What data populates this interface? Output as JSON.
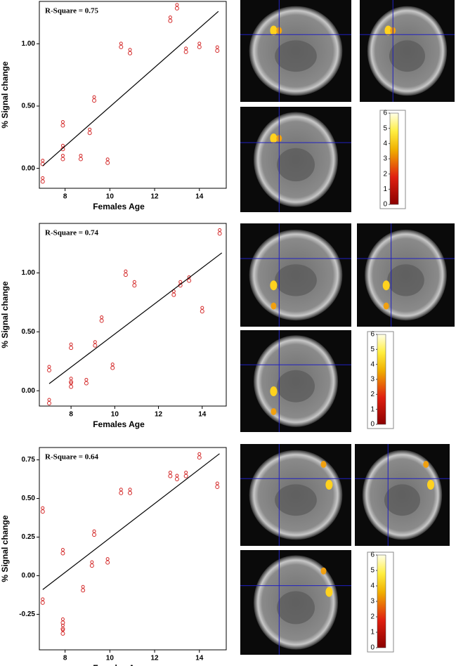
{
  "chart_data": [
    {
      "type": "scatter",
      "title": "R-Square = 0.75",
      "x_label": "Females Age",
      "y_label": "% Signal change",
      "xlim": [
        6.85,
        15.2
      ],
      "ylim": [
        -0.16,
        1.34
      ],
      "xticks": [
        8,
        10,
        12,
        14
      ],
      "yticks": [
        {
          "value": 0,
          "label": "0.00"
        },
        {
          "value": 0.5,
          "label": "0.50"
        },
        {
          "value": 1,
          "label": "1.00"
        }
      ],
      "series": [
        {
          "type": "scatter",
          "color": "#d42a2a",
          "x": [
            7.0,
            7.0,
            7.9,
            7.9,
            7.9,
            8.7,
            9.1,
            9.3,
            9.9,
            10.5,
            10.9,
            12.7,
            13.0,
            13.4,
            14.0,
            14.8
          ],
          "values": [
            0.04,
            -0.1,
            0.35,
            0.16,
            0.08,
            0.08,
            0.29,
            0.55,
            0.05,
            0.98,
            0.93,
            1.19,
            1.29,
            0.94,
            0.98,
            0.95
          ]
        },
        {
          "type": "line",
          "color": "#000000",
          "x": [
            7.0,
            14.85
          ],
          "values": [
            0.02,
            1.26
          ]
        }
      ],
      "colorbar_ticks": [
        0,
        1,
        2,
        3,
        4,
        5,
        6
      ]
    },
    {
      "type": "scatter",
      "title": "R-Square = 0.74",
      "x_label": "Females Age",
      "y_label": "% Signal change",
      "xlim": [
        6.55,
        15.1
      ],
      "ylim": [
        -0.13,
        1.42
      ],
      "xticks": [
        8,
        10,
        12,
        14
      ],
      "yticks": [
        {
          "value": 0,
          "label": "0.00"
        },
        {
          "value": 0.5,
          "label": "0.50"
        },
        {
          "value": 1,
          "label": "1.00"
        }
      ],
      "series": [
        {
          "type": "scatter",
          "color": "#d42a2a",
          "x": [
            7.0,
            7.0,
            8.0,
            8.0,
            8.0,
            8.7,
            9.1,
            9.4,
            9.9,
            10.5,
            10.9,
            12.7,
            13.0,
            13.4,
            14.0,
            14.8
          ],
          "values": [
            0.18,
            -0.1,
            0.37,
            0.08,
            0.04,
            0.07,
            0.39,
            0.6,
            0.2,
            0.99,
            0.9,
            0.82,
            0.9,
            0.94,
            0.68,
            1.34
          ]
        },
        {
          "type": "line",
          "color": "#000000",
          "x": [
            7.0,
            14.9
          ],
          "values": [
            0.06,
            1.17
          ]
        }
      ],
      "colorbar_ticks": [
        0,
        1,
        2,
        3,
        4,
        5,
        6
      ]
    },
    {
      "type": "scatter",
      "title": "R-Square = 0.64",
      "x_label": "Females Age",
      "y_label": "% Signal change",
      "xlim": [
        6.85,
        15.2
      ],
      "ylim": [
        -0.48,
        0.83
      ],
      "xticks": [
        8,
        10,
        12,
        14
      ],
      "yticks": [
        {
          "value": -0.25,
          "label": "-0.25"
        },
        {
          "value": 0,
          "label": "0.00"
        },
        {
          "value": 0.25,
          "label": "0.25"
        },
        {
          "value": 0.5,
          "label": "0.50"
        },
        {
          "value": 0.75,
          "label": "0.75"
        }
      ],
      "series": [
        {
          "type": "scatter",
          "color": "#d42a2a",
          "x": [
            7.0,
            7.0,
            7.9,
            7.9,
            7.9,
            7.9,
            8.8,
            9.2,
            9.3,
            9.9,
            10.5,
            10.9,
            12.7,
            13.0,
            13.4,
            14.0,
            14.8
          ],
          "values": [
            0.42,
            -0.17,
            0.15,
            -0.3,
            -0.34,
            -0.37,
            -0.09,
            0.07,
            0.27,
            0.09,
            0.54,
            0.54,
            0.65,
            0.63,
            0.65,
            0.77,
            0.58
          ]
        },
        {
          "type": "line",
          "color": "#000000",
          "x": [
            7.0,
            14.9
          ],
          "values": [
            -0.09,
            0.79
          ]
        }
      ],
      "colorbar_ticks": [
        0,
        1,
        2,
        3,
        4,
        5,
        6
      ]
    }
  ]
}
